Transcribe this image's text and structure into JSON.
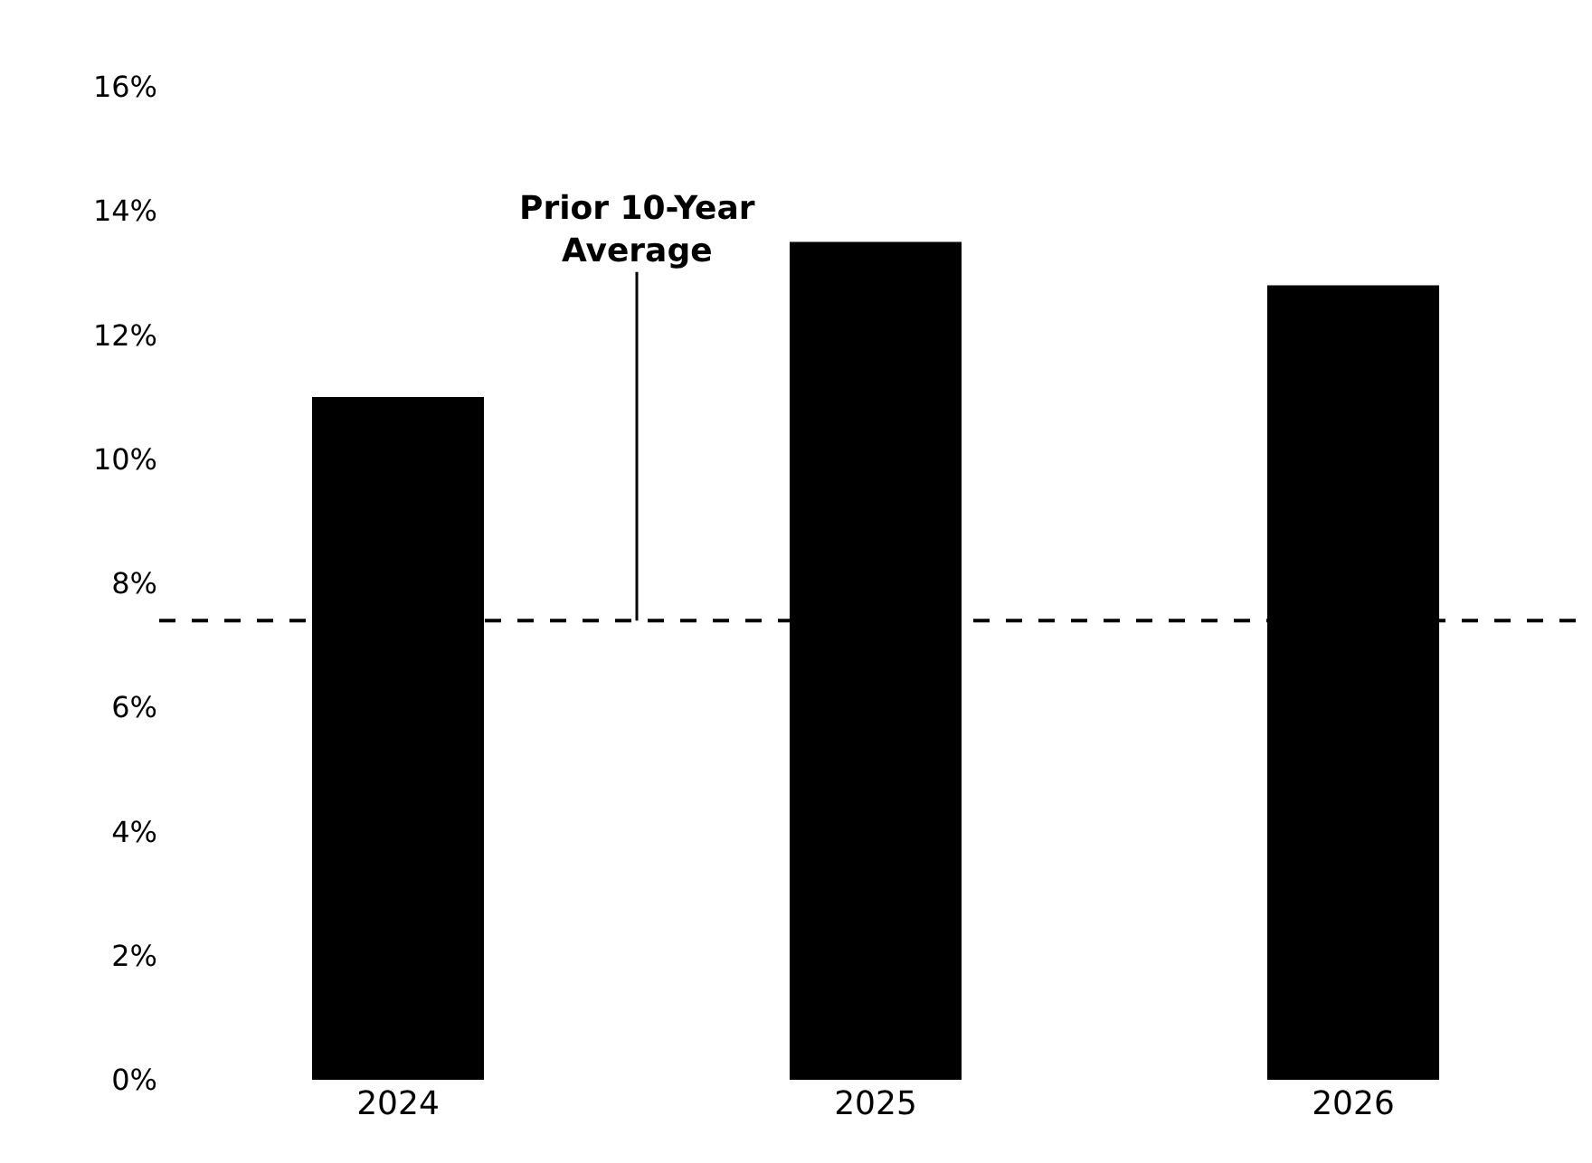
{
  "chart_data": {
    "type": "bar",
    "categories": [
      "2024",
      "2025",
      "2026"
    ],
    "values": [
      11.0,
      13.5,
      12.8
    ],
    "color": "#000000",
    "ylim": [
      0,
      16
    ],
    "yticks": [
      {
        "value": 0,
        "label": "0%"
      },
      {
        "value": 2,
        "label": "2%"
      },
      {
        "value": 4,
        "label": "4%"
      },
      {
        "value": 6,
        "label": "6%"
      },
      {
        "value": 8,
        "label": "8%"
      },
      {
        "value": 10,
        "label": "10%"
      },
      {
        "value": 12,
        "label": "12%"
      },
      {
        "value": 14,
        "label": "14%"
      },
      {
        "value": 16,
        "label": "16%"
      }
    ],
    "ref_lines": [
      {
        "axis": "y",
        "value": 7.4,
        "label": "Prior 10-Year\nAverage",
        "color": "#000000",
        "line_style": "dashed"
      }
    ]
  }
}
